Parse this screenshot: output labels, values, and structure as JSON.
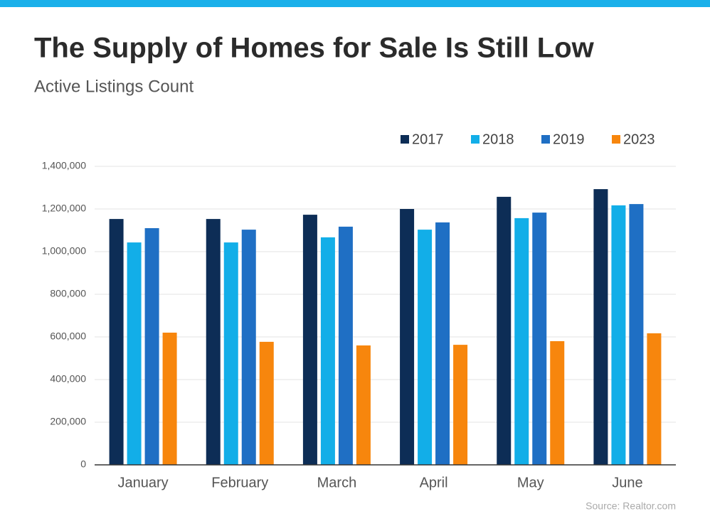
{
  "chart_data": {
    "type": "bar",
    "title": "The Supply of Homes for Sale Is Still Low",
    "subtitle": "Active Listings Count",
    "source": "Source: Realtor.com",
    "categories": [
      "January",
      "February",
      "March",
      "April",
      "May",
      "June"
    ],
    "series": [
      {
        "name": "2017",
        "color": "#0d2d56",
        "values": [
          1153000,
          1153000,
          1173000,
          1200000,
          1257000,
          1293000
        ]
      },
      {
        "name": "2018",
        "color": "#12aee8",
        "values": [
          1043000,
          1043000,
          1067000,
          1103000,
          1157000,
          1217000
        ]
      },
      {
        "name": "2019",
        "color": "#1f6fc4",
        "values": [
          1110000,
          1103000,
          1117000,
          1137000,
          1183000,
          1223000
        ]
      },
      {
        "name": "2023",
        "color": "#f7860d",
        "values": [
          620000,
          577000,
          560000,
          563000,
          580000,
          617000
        ]
      }
    ],
    "ylim": [
      0,
      1400000
    ],
    "yticks": [
      0,
      {
        "value": 200000,
        "label": "200,000"
      },
      {
        "value": 400000,
        "label": "400,000"
      },
      {
        "value": 600000,
        "label": "600,000"
      },
      {
        "value": 800000,
        "label": "800,000"
      },
      {
        "value": 1000000,
        "label": "1,000,000"
      },
      {
        "value": 1200000,
        "label": "1,200,000"
      },
      {
        "value": 1400000,
        "label": "1,400,000"
      }
    ],
    "grid": true,
    "legend": "top-right"
  }
}
